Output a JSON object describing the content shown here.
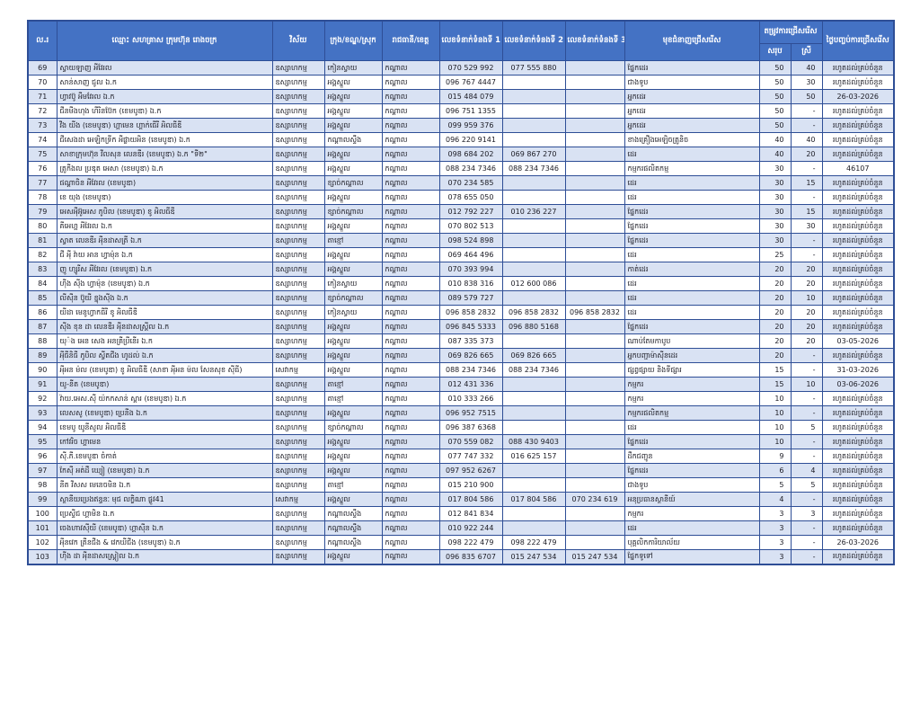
{
  "colors": {
    "header_bg": "#4472C4",
    "header_text": "#FFFFFF",
    "row_alt_bg": "#D9E2F3",
    "row_bg": "#FFFFFF",
    "border": "#2E4E96",
    "text": "#1B1B24"
  },
  "table": {
    "headers": {
      "no": "ល.រ",
      "name": "ឈ្មោះ សហគ្រាស ក្រុមហ៊ុន រោងចក្រ",
      "sector": "វិស័យ",
      "district": "ក្រុង/ខណ្ឌ/ស្រុក",
      "province": "រាជធានី/ខេត្ត",
      "phone1": "លេខទំនាក់ទំនងទី 1",
      "phone2": "លេខទំនាក់ទំនងទី 2",
      "phone3": "លេខទំនាក់ទំនងទី 3",
      "specialty": "មុខជំនាញជ្រើសរើស",
      "demand": "តម្រូវការជ្រើសរើស",
      "demand_total": "សរុប",
      "demand_female": "ស្រី",
      "end_date": "ថ្ងៃបញ្ចប់ការជ្រើសរើស"
    },
    "rows": [
      [
        "69",
        "ស្វាយឡាញ អីវែរល",
        "ឧស្សាហកម្ម",
        "កៀនស្វាយ",
        "កណ្តាល",
        "070 529 992",
        "077 555 880",
        "",
        "ផ្នែកដេរ",
        "50",
        "40",
        "រហូតដល់គ្រប់ចំនួន"
      ],
      [
        "70",
        "សាន់សាញ ជូល ឯ.ក",
        "ឧស្សាហកម្ម",
        "អង្គស្នួល",
        "កណ្តាល",
        "096 767 4447",
        "",
        "",
        "ជាងទូប",
        "50",
        "30",
        "រហូតដល់គ្រប់ចំនួន"
      ],
      [
        "71",
        "ហ្វាវប៊ូ អីមវែរល ឯ.ក",
        "ឧស្សាហកម្ម",
        "អង្គស្នួល",
        "កណ្តាល",
        "015 484 079",
        "",
        "",
        "អ្នកដេរ",
        "50",
        "50",
        "26-03-2026"
      ],
      [
        "72",
        "ជីនមីងហុង ហីរិនប៊ែក (ខេមបូឌា) ឯ.ក",
        "ឧស្សាហកម្ម",
        "អង្គស្នួល",
        "កណ្តាល",
        "096 751 1355",
        "",
        "",
        "អ្នកដេរ",
        "50",
        "-",
        "រហូតដល់គ្រប់ចំនួន"
      ],
      [
        "73",
        "វីង យីង (ខេមបូឌា) ហ្គាមេន ហ្គាក់ធើរី អិលធីឌី",
        "ឧស្សាហកម្ម",
        "អង្គស្នួល",
        "កណ្តាល",
        "099 959 376",
        "",
        "",
        "អ្នកដេរ",
        "50",
        "-",
        "រហូតដល់គ្រប់ចំនួន"
      ],
      [
        "74",
        "ជីសេងដា អេឡិកទ្រីក អីផ្លាយអិន (ខេមបូឌា) ឯ.ក",
        "ឧស្សាហកម្ម",
        "កណ្តាលស្ទឹង",
        "កណ្តាល",
        "096 220 9141",
        "",
        "",
        "ខាងគ្រឿងអេឡិចត្រូនិច",
        "40",
        "40",
        "រហូតដល់គ្រប់ចំនួន"
      ],
      [
        "75",
        "សាខាក្រុមហ៊ុន វីលសុន លេនឌីរ (ខេមបូឌា) ឯ.ក \"ទី២\"",
        "ឧស្សាហកម្ម",
        "អង្គស្នួល",
        "កណ្តាល",
        "098 684 202",
        "069 867 270",
        "",
        "ដេរ",
        "40",
        "20",
        "រហូតដល់គ្រប់ចំនួន"
      ],
      [
        "76",
        "ត្រូកីងល ប្រឌុត អេសា (ខេមបូឌា) ឯ.ក",
        "ឧស្សាហកម្ម",
        "អង្គស្នួល",
        "កណ្តាល",
        "088 234 7346",
        "088 234 7346",
        "",
        "កម្មករផលិតកម្ម",
        "30",
        "-",
        "46107"
      ],
      [
        "77",
        "ផណ្តាចិន អីវែរល (ខេមបូឌា)",
        "ឧស្សាហកម្ម",
        "ខ្សាច់កណ្តាល",
        "កណ្តាល",
        "070 234 585",
        "",
        "",
        "ដេរ",
        "30",
        "15",
        "រហូតដល់គ្រប់ចំនួន"
      ],
      [
        "78",
        "ខេ យុង (ខេមបូឌា)",
        "ឧស្សាហកម្ម",
        "អង្គស្នួល",
        "កណ្តាល",
        "078 655 050",
        "",
        "",
        "ដេរ",
        "30",
        "-",
        "រហូតដល់គ្រប់ចំនួន"
      ],
      [
        "79",
        "អេសអុីអ៊ូអេស ភូបិល (ខេមបូឌា) ខូ អិលធីឌី",
        "ឧស្សាហកម្ម",
        "ខ្សាច់កណ្តាល",
        "កណ្តាល",
        "012 792 227",
        "010 236 227",
        "",
        "ផ្នែកដេរ",
        "30",
        "15",
        "រហូតដល់គ្រប់ចំនួន"
      ],
      [
        "80",
        "គីអេហ្គ អីវែរល ឯ.ក",
        "ឧស្សាហកម្ម",
        "អង្គស្នួល",
        "កណ្តាល",
        "070 802 513",
        "",
        "",
        "ផ្នែកដេរ",
        "30",
        "30",
        "រហូតដល់គ្រប់ចំនួន"
      ],
      [
        "81",
        "ស្វាត លេនឌីរ អុីនដាសត្រី ឯ.ក",
        "ឧស្សាហកម្ម",
        "តាខ្មៅ",
        "កណ្តាល",
        "098 524 898",
        "",
        "",
        "ផ្នែកដេរ",
        "30",
        "-",
        "រហូតដល់គ្រប់ចំនួន"
      ],
      [
        "82",
        "ជី អុី វ៉ាយ អាន ហ្វាម៉ុន ឯ.ក",
        "ឧស្សាហកម្ម",
        "អង្គស្នួល",
        "កណ្តាល",
        "069 464 496",
        "",
        "",
        "ដេរ",
        "25",
        "-",
        "រហូតដល់គ្រប់ចំនួន"
      ],
      [
        "83",
        "ញូ ហ្សូរីស អីវែរល (ខេមបូឌា) ឯ.ក",
        "ឧស្សាហកម្ម",
        "អង្គស្នួល",
        "កណ្តាល",
        "070 393 994",
        "",
        "",
        "កាត់ដេរ",
        "20",
        "20",
        "រហូតដល់គ្រប់ចំនួន"
      ],
      [
        "84",
        "ហុីង សុីង ហ្វាម៉ុន (ខេមបូឌា) ឯ.ក",
        "ឧស្សាហកម្ម",
        "កៀនស្វាយ",
        "កណ្តាល",
        "010 838 316",
        "012 600 086",
        "",
        "ដេរ",
        "20",
        "20",
        "រហូតដល់គ្រប់ចំនួន"
      ],
      [
        "85",
        "លីសុីន ប៊ូយី ខ្នុងសុីង ឯ.ក",
        "ឧស្សាហកម្ម",
        "ខ្សាច់កណ្តាល",
        "កណ្តាល",
        "089 579 727",
        "",
        "",
        "ដេរ",
        "20",
        "10",
        "រហូតដល់គ្រប់ចំនួន"
      ],
      [
        "86",
        "យីដា មេនូហ្វាកធីរី ខូ អិលធីឌី",
        "ឧស្សាហកម្ម",
        "កៀនស្វាយ",
        "កណ្តាល",
        "096 858 2832",
        "096 858 2832",
        "096 858 2832",
        "ដេរ",
        "20",
        "20",
        "រហូតដល់គ្រប់ចំនួន"
      ],
      [
        "87",
        "សុីង ខុន ដា លេនឌីរ អុីនដាសស្រ្តីល ឯ.ក",
        "ឧស្សាហកម្ម",
        "អង្គស្នួល",
        "កណ្តាល",
        "096 845 5333",
        "096 880 5168",
        "",
        "ផ្នែកដេរ",
        "20",
        "20",
        "រហូតដល់គ្រប់ចំនួន"
      ],
      [
        "88",
        "យុ៉ង អេន សេង អនគ្រីប្រីនើរ ឯ.ក",
        "ឧស្សាហកម្ម",
        "អង្គស្នួល",
        "កណ្តាល",
        "087 335 373",
        "",
        "",
        "ណាប់តែមកាបូប",
        "20",
        "20",
        "03-05-2026"
      ],
      [
        "89",
        "អុីធីនិធី ភូបិល ស្វីតជីង ហូដល់ ឯ.ក",
        "ឧស្សាហកម្ម",
        "អង្គស្នួល",
        "កណ្តាល",
        "069 826 665",
        "069 826 665",
        "",
        "អ្នកបញ្ជាម៉ាស៊ីនដេរ",
        "20",
        "-",
        "រហូតដល់គ្រប់ចំនួន"
      ],
      [
        "90",
        "អុីអន ម៉ល (ខេមបូឌា) ខូ អិលធីឌី (សាខា អុីអន ម៉ល សែនសុខ សុីធី)",
        "សេវាកម្ម",
        "អង្គស្នួល",
        "កណ្តាល",
        "088 234 7346",
        "088 234 7346",
        "",
        "ផ្សព្វផ្សាយ និងទីផ្សារ",
        "15",
        "-",
        "31-03-2026"
      ],
      [
        "91",
        "យូ-នីត (ខេមបូឌា)",
        "ឧស្សាហកម្ម",
        "តាខ្មៅ",
        "កណ្តាល",
        "012 431 336",
        "",
        "",
        "កម្មករ",
        "15",
        "10",
        "03-06-2026"
      ],
      [
        "92",
        "វ៉ាយ.អេស.សុី យ៉កកសាន់ ស្តារ (ខេមបូឌា) ឯ.ក",
        "ឧស្សាហកម្ម",
        "តាខ្មៅ",
        "កណ្តាល",
        "010 333 266",
        "",
        "",
        "កម្មករ",
        "10",
        "-",
        "រហូតដល់គ្រប់ចំនួន"
      ],
      [
        "93",
        "លេសសូ (ខេមបូឌា) ប្រេនីង ឯ.ក",
        "ឧស្សាហកម្ម",
        "អង្គស្នួល",
        "កណ្តាល",
        "096 952 7515",
        "",
        "",
        "កម្មករផលិតកម្ម",
        "10",
        "-",
        "រហូតដល់គ្រប់ចំនួន"
      ],
      [
        "94",
        "ខេមបូ យូនីសូល អិលធីឌី",
        "ឧស្សាហកម្ម",
        "ខ្សាច់កណ្តាល",
        "កណ្តាល",
        "096 387 6368",
        "",
        "",
        "ដេរ",
        "10",
        "5",
        "រហូតដល់គ្រប់ចំនួន"
      ],
      [
        "95",
        "កៅវរិច ហ្គាមេន",
        "ឧស្សាហកម្ម",
        "អង្គស្នួល",
        "កណ្តាល",
        "070 559 082",
        "088 430 9403",
        "",
        "ផ្នែកដេរ",
        "10",
        "-",
        "រហូតដល់គ្រប់ចំនួន"
      ],
      [
        "96",
        "សុី.ភី.ខេមបូឌា ចំកាត់",
        "ឧស្សាហកម្ម",
        "អង្គស្នួល",
        "កណ្តាល",
        "077 747 332",
        "016 625 157",
        "",
        "ដឹកជញ្ជូន",
        "9",
        "-",
        "រហូតដល់គ្រប់ចំនួន"
      ],
      [
        "97",
        "កែសុី អត់ដឺ ឃ្យៀ (ខេមបូឌា) ឯ.ក",
        "ឧស្សាហកម្ម",
        "អង្គស្នួល",
        "កណ្តាល",
        "097 952 6267",
        "",
        "",
        "ផ្នែកដេរ",
        "6",
        "4",
        "រហូតដល់គ្រប់ចំនួន"
      ],
      [
        "98",
        "នីត វីសស មេនេចមិន ឯ.ក",
        "ឧស្សាហកម្ម",
        "តាខ្មៅ",
        "កណ្តាល",
        "015 210 900",
        "",
        "",
        "ជាងទូប",
        "5",
        "5",
        "រហូតដល់គ្រប់ចំនួន"
      ],
      [
        "99",
        "ស្ថានីយប្រេងឥន្ធនៈ មុជ លក្ខិណា ផ្លូវ41",
        "សេវាកម្ម",
        "អង្គស្នួល",
        "កណ្តាល",
        "017 804 586",
        "017 804 586",
        "070 234 619",
        "អនុប្រធានស្ថានីយ៍",
        "4",
        "-",
        "រហូតដល់គ្រប់ចំនួន"
      ],
      [
        "100",
        "ប្រេស្ទីជ ហ្គាមិន ឯ.ក",
        "ឧស្សាហកម្ម",
        "កណ្តាលស្ទឹង",
        "កណ្តាល",
        "012 841 834",
        "",
        "",
        "កម្មករ",
        "3",
        "3",
        "រហូតដល់គ្រប់ចំនួន"
      ],
      [
        "101",
        "ចេងហាវសុីយី (ខេមបូឌា) ហ្គាសុីន ឯ.ក",
        "ឧស្សាហកម្ម",
        "កណ្តាលស្ទឹង",
        "កណ្តាល",
        "010 922 244",
        "",
        "",
        "ដេរ",
        "3",
        "-",
        "រហូតដល់គ្រប់ចំនួន"
      ],
      [
        "102",
        "អុីនវេក ត្រីនជីង & វេកឃីជីង (ខេមបូឌា) ឯ.ក",
        "ឧស្សាហកម្ម",
        "កណ្តាលស្ទឹង",
        "កណ្តាល",
        "098 222 479",
        "098 222 479",
        "",
        "បុគ្គលិកការិយាល័យ",
        "3",
        "-",
        "26-03-2026"
      ],
      [
        "103",
        "ហុីង ដា អុីនដាសស្រ្តៀល ឯ.ក",
        "ឧស្សាហកម្ម",
        "អង្គស្នួល",
        "កណ្តាល",
        "096 835 6707",
        "015 247 534",
        "015 247 534",
        "ផ្នែកទូទៅ",
        "3",
        "-",
        "រហូតដល់គ្រប់ចំនួន"
      ]
    ]
  }
}
